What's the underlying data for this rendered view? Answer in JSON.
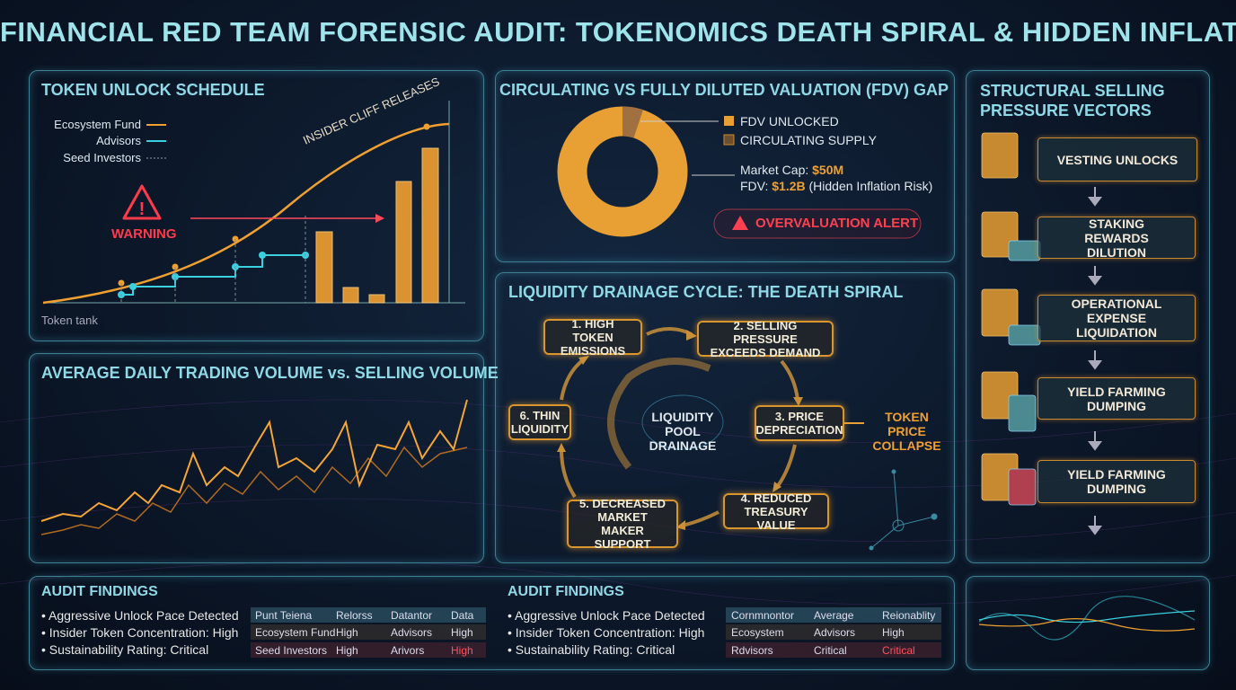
{
  "title": "FINANCIAL RED TEAM FORENSIC AUDIT: TOKENOMICS DEATH SPIRAL & HIDDEN INFLATION",
  "token_unlock": {
    "title": "TOKEN UNLOCK SCHEDULE",
    "legend": [
      "Ecosystem Fund",
      "Advisors",
      "Seed Investors"
    ],
    "annotation": "INSIDER CLIFF RELEASES",
    "warning": "WARNING",
    "axis_label": "Token tank"
  },
  "fdv_gap": {
    "title": "CIRCULATING VS FULLY DILUTED VALUATION (FDV) GAP",
    "legend": [
      "FDV UNLOCKED",
      "CIRCULATING SUPPLY"
    ],
    "market_cap_label": "Market Cap:",
    "market_cap": "$50M",
    "fdv_label": "FDV:",
    "fdv": "$1.2B",
    "fdv_note": "(Hidden Inflation Risk)",
    "alert": "OVERVALUATION ALERT"
  },
  "selling_pressure": {
    "title": "STRUCTURAL SELLING PRESSURE VECTORS",
    "steps": [
      "VESTING UNLOCKS",
      "STAKING REWARDS DILUTION",
      "OPERATIONAL EXPENSE LIQUIDATION",
      "YIELD FARMING DUMPING",
      "YIELD FARMING DUMPING"
    ]
  },
  "volume": {
    "title": "AVERAGE DAILY TRADING VOLUME vs. SELLING VOLUME"
  },
  "death_spiral": {
    "title": "LIQUIDITY DRAINAGE CYCLE: THE DEATH SPIRAL",
    "center": "LIQUIDITY POOL DRAINAGE",
    "steps": [
      "1. HIGH TOKEN EMISSIONS",
      "2. SELLING PRESSURE EXCEEDS DEMAND",
      "3. PRICE DEPRECIATION",
      "4. REDUCED TREASURY VALUE",
      "5. DECREASED MARKET MAKER SUPPORT",
      "6. THIN LIQUIDITY"
    ],
    "outcome": "TOKEN PRICE COLLAPSE"
  },
  "audit": [
    {
      "title": "AUDIT FINDINGS",
      "bullets": [
        "Aggressive Unlock Pace Detected",
        "Insider Token Concentration: High",
        "Sustainability Rating: Critical"
      ],
      "table": {
        "header": [
          "Punt Teiena",
          "Relorss",
          "Datantor",
          "Data"
        ],
        "rows": [
          [
            "Ecosystem Fund",
            "High",
            "Advisors",
            "High"
          ],
          [
            "Seed Investors",
            "High",
            "Arivors",
            "High"
          ]
        ]
      }
    },
    {
      "title": "AUDIT FINDINGS",
      "bullets": [
        "Aggressive Unlock Pace Detected",
        "Insider Token Concentration: High",
        "Sustainability Rating: Critical"
      ],
      "table": {
        "header": [
          "Cornmnontor",
          "Average",
          "Reionablity"
        ],
        "rows": [
          [
            "Ecosystem",
            "Advisors",
            "High"
          ],
          [
            "Rdvisors",
            "Critical",
            "Critical"
          ]
        ]
      }
    }
  ]
}
